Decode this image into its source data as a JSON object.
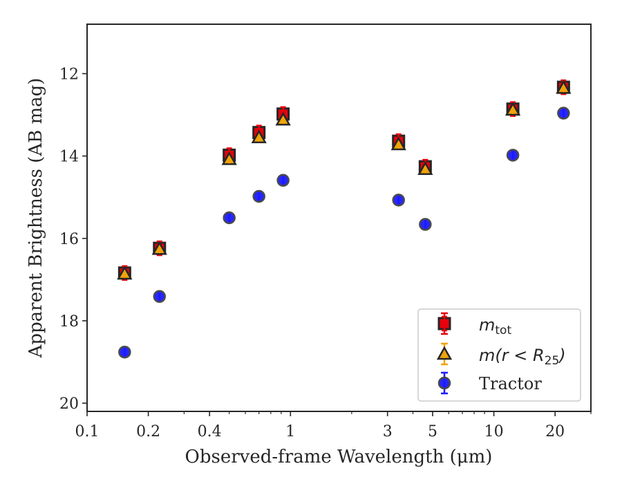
{
  "chart_data": {
    "type": "scatter",
    "x_scale": "log",
    "y_inverted": true,
    "xlim": [
      0.1,
      30
    ],
    "ylim": [
      20.2,
      10.8
    ],
    "xticks": [
      0.1,
      0.2,
      0.4,
      1,
      3,
      5,
      10,
      20
    ],
    "xtick_labels": [
      "0.1",
      "0.2",
      "0.4",
      "1",
      "3",
      "5",
      "10",
      "20"
    ],
    "yticks": [
      12,
      14,
      16,
      18,
      20
    ],
    "ytick_labels": [
      "12",
      "14",
      "16",
      "18",
      "20"
    ],
    "xlabel": "Observed-frame Wavelength (μm)",
    "ylabel": "Apparent Brightness (AB mag)",
    "grid": false,
    "legend_position": "bottom-right",
    "series": [
      {
        "name": "m_tot",
        "legend_main": "m",
        "legend_sub": "tot",
        "marker": "square",
        "color": "#e8000b",
        "x": [
          0.153,
          0.227,
          0.5,
          0.7,
          0.92,
          3.4,
          4.6,
          12.4,
          22.0
        ],
        "y": [
          16.84,
          16.24,
          13.98,
          13.43,
          12.98,
          13.64,
          14.26,
          12.86,
          12.33
        ]
      },
      {
        "name": "m(r < R25)",
        "legend_main": "m(r < R",
        "legend_sub": "25",
        "legend_tail": ")",
        "marker": "triangle",
        "color": "#f1a30a",
        "x": [
          0.153,
          0.227,
          0.5,
          0.7,
          0.92,
          3.4,
          4.6,
          12.4,
          22.0
        ],
        "y": [
          16.86,
          16.26,
          14.08,
          13.55,
          13.12,
          13.72,
          14.32,
          12.88,
          12.35
        ]
      },
      {
        "name": "Tractor",
        "marker": "circle",
        "color": "#1a1aff",
        "x": [
          0.153,
          0.227,
          0.5,
          0.7,
          0.92,
          3.4,
          4.6,
          12.4,
          22.0
        ],
        "y": [
          18.76,
          17.41,
          15.5,
          14.98,
          14.59,
          15.07,
          15.66,
          13.98,
          12.96
        ]
      }
    ]
  }
}
